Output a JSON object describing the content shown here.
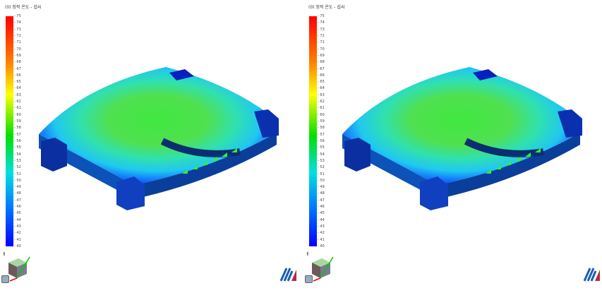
{
  "legend": {
    "title": "(0) 정적 온도 - 섭씨",
    "ticks": [
      "75",
      "74",
      "73",
      "72",
      "71",
      "70",
      "69",
      "68",
      "67",
      "66",
      "65",
      "64",
      "63",
      "62",
      "61",
      "60",
      "59",
      "58",
      "57",
      "56",
      "55",
      "54",
      "53",
      "52",
      "51",
      "50",
      "49",
      "48",
      "47",
      "46",
      "45",
      "44",
      "43",
      "42",
      "41",
      "40"
    ],
    "min": 40,
    "max": 75,
    "colors": {
      "max": "#ff0000",
      "mid": "#00e000",
      "min": "#0000ff"
    }
  },
  "viewports": [
    {
      "id": "left"
    },
    {
      "id": "right"
    }
  ],
  "icons": [
    "pin-icon",
    "view-cube-icon",
    "home-view-icon",
    "brand-logo-icon"
  ]
}
